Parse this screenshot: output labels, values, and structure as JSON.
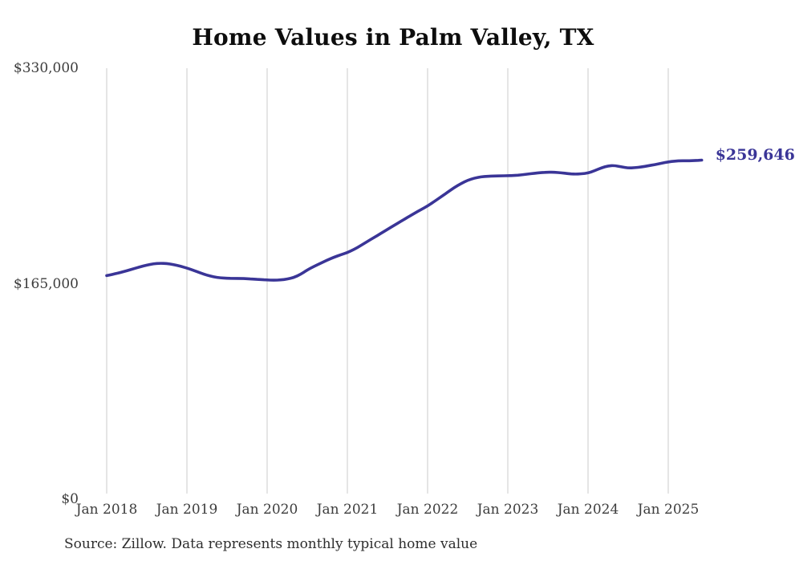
{
  "title": "Home Values in Palm Valley, TX",
  "source_note": "Source: Zillow. Data represents monthly typical home value",
  "end_label": "$259,646",
  "colors": {
    "line": "#3a3597",
    "grid": "#cbcbcb",
    "axis_text": "#3d3d3d",
    "title_text": "#0d0d0d",
    "end_label_text": "#3a3597"
  },
  "chart_data": {
    "type": "line",
    "title": "Home Values in Palm Valley, TX",
    "xlabel": "",
    "ylabel": "",
    "ylim": [
      0,
      330000
    ],
    "grid": "vertical-only",
    "legend": "none",
    "x_start_month": "Jan 2018",
    "x_end_month": "Jun 2025",
    "x_tick_labels": [
      "Jan 2018",
      "Jan 2019",
      "Jan 2020",
      "Jan 2021",
      "Jan 2022",
      "Jan 2023",
      "Jan 2024",
      "Jan 2025"
    ],
    "y_ticks": [
      {
        "label": "$0",
        "value": 0
      },
      {
        "label": "$165,000",
        "value": 165000
      },
      {
        "label": "$330,000",
        "value": 330000
      }
    ],
    "end_value": 259646,
    "series": [
      {
        "name": "Monthly typical home value",
        "values": [
          171200,
          172300,
          173500,
          174900,
          176400,
          177900,
          179200,
          180300,
          180700,
          180400,
          179600,
          178500,
          177000,
          175200,
          173300,
          171500,
          170200,
          169500,
          169200,
          169100,
          169000,
          168800,
          168500,
          168200,
          167900,
          167700,
          167900,
          168500,
          169800,
          172200,
          175500,
          178200,
          180700,
          183100,
          185300,
          187100,
          188800,
          191300,
          194200,
          197300,
          200400,
          203500,
          206600,
          209700,
          212800,
          215800,
          218800,
          221700,
          224500,
          227900,
          231500,
          235100,
          238600,
          241700,
          244200,
          245900,
          246900,
          247300,
          247500,
          247600,
          247700,
          247900,
          248300,
          248900,
          249600,
          250100,
          250400,
          250300,
          249900,
          249300,
          248900,
          249100,
          249700,
          251500,
          253700,
          255300,
          255500,
          254500,
          253600,
          253800,
          254400,
          255300,
          256200,
          257300,
          258300,
          258900,
          259200,
          259100,
          259300,
          259646
        ]
      }
    ]
  }
}
